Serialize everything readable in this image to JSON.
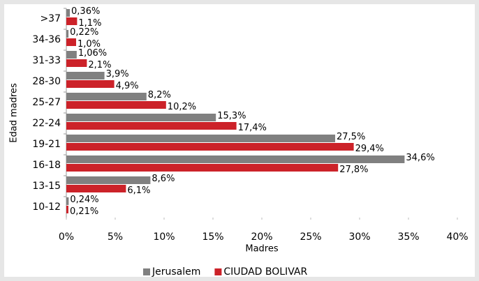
{
  "chart_data": {
    "type": "hbar",
    "xlabel": "Madres",
    "ylabel": "Edad madres",
    "categories": [
      ">37",
      "34-36",
      "31-33",
      "28-30",
      "25-27",
      "22-24",
      "19-21",
      "16-18",
      "13-15",
      "10-12"
    ],
    "series": [
      {
        "name": "Jerusalem",
        "color": "#808080",
        "values": [
          0.36,
          0.22,
          1.06,
          3.9,
          8.2,
          15.3,
          27.5,
          34.6,
          8.6,
          0.24
        ],
        "value_labels": [
          "0,36%",
          "0,22%",
          "1,06%",
          "3,9%",
          "8,2%",
          "15,3%",
          "27,5%",
          "34,6%",
          "8,6%",
          "0,24%"
        ]
      },
      {
        "name": "CIUDAD BOLIVAR",
        "color": "#cc2229",
        "values": [
          1.1,
          1.0,
          2.1,
          4.9,
          10.2,
          17.4,
          29.4,
          27.8,
          6.1,
          0.21
        ],
        "value_labels": [
          "1,1%",
          "1,0%",
          "2,1%",
          "4,9%",
          "10,2%",
          "17,4%",
          "29,4%",
          "27,8%",
          "6,1%",
          "0,21%"
        ]
      }
    ],
    "xlim": [
      0,
      40
    ],
    "xticks": [
      {
        "value": 0,
        "label": "0%"
      },
      {
        "value": 5,
        "label": "5%"
      },
      {
        "value": 10,
        "label": "10%"
      },
      {
        "value": 15,
        "label": "15%"
      },
      {
        "value": 20,
        "label": "20%"
      },
      {
        "value": 25,
        "label": "25%"
      },
      {
        "value": 30,
        "label": "30%"
      },
      {
        "value": 35,
        "label": "35%"
      },
      {
        "value": 40,
        "label": "40%"
      }
    ],
    "legend": "bottom"
  }
}
